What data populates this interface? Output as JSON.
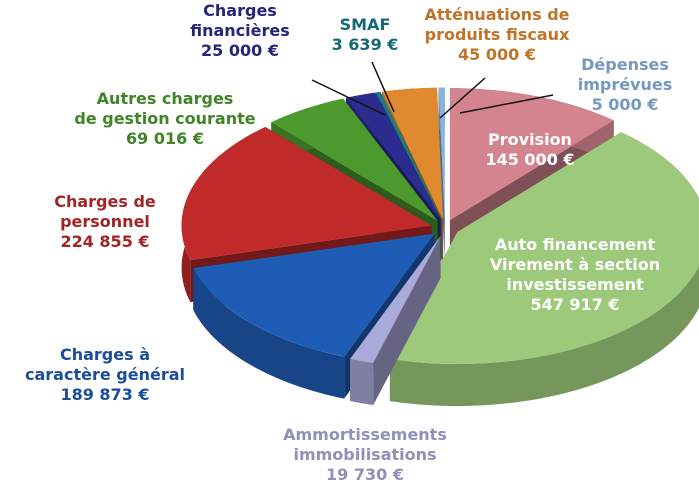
{
  "chart_data": {
    "type": "pie",
    "categories": [
      "Provision",
      "Auto financement\nVirement à section\ninvestissement",
      "Ammortissements\nimmobilisations",
      "Charges à\ncaractère général",
      "Charges de\npersonnel",
      "Autres charges\nde gestion courante",
      "Charges\nfinancières",
      "SMAF",
      "Atténuations de\nproduits fiscaux",
      "Dépenses\nimprévues"
    ],
    "values": [
      145000,
      547917,
      19730,
      189873,
      224855,
      69016,
      25000,
      3639,
      45000,
      5000
    ],
    "value_labels": [
      "145 000 €",
      "547 917 €",
      "19 730 €",
      "189 873 €",
      "224 855 €",
      "69 016 €",
      "25 000 €",
      "3 639 €",
      "45 000 €",
      "5 000 €"
    ],
    "colors": [
      "#d4848f",
      "#9cc97a",
      "#a9a9da",
      "#1f5cb5",
      "#c02a2a",
      "#4c9a2e",
      "#2b2b90",
      "#1a7a8a",
      "#e08a30",
      "#8ab4e0"
    ]
  }
}
